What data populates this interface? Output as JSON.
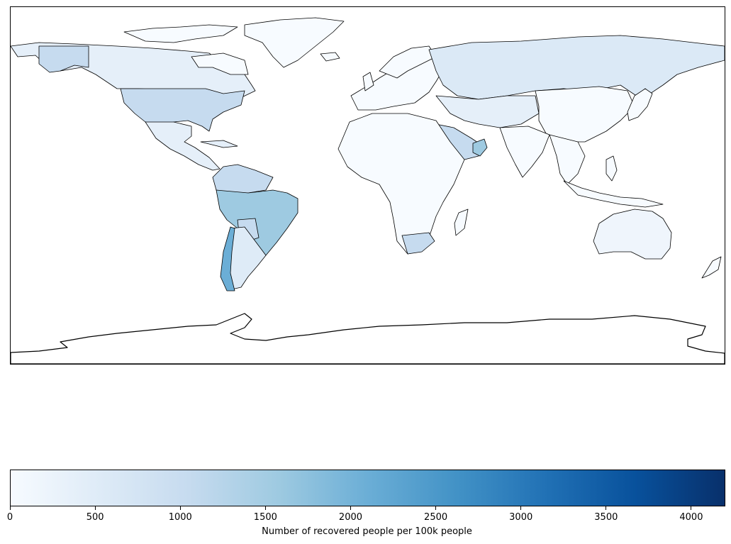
{
  "map": {
    "projection": "plate-carree",
    "coastlines": true,
    "colormap": "Blues",
    "fill_colors": {
      "lightest": "#f7fbff",
      "light": "#deebf7",
      "medium_light": "#c6dbef",
      "medium": "#9ecae1",
      "medium_dark": "#6baed6",
      "dark": "#4292c6"
    },
    "regions": [
      {
        "name": "Canada/Alaska",
        "color_class": "light"
      },
      {
        "name": "United States",
        "color_class": "medium_light"
      },
      {
        "name": "Brazil",
        "color_class": "medium"
      },
      {
        "name": "Chile",
        "color_class": "medium_dark"
      },
      {
        "name": "Oman",
        "color_class": "medium"
      },
      {
        "name": "Russia",
        "color_class": "light"
      },
      {
        "name": "South Africa",
        "color_class": "medium_light"
      },
      {
        "name": "Australia",
        "color_class": "lightest"
      },
      {
        "name": "Greenland",
        "color_class": "lightest"
      }
    ]
  },
  "colorbar": {
    "label": "Number of recovered people per 100k people",
    "min": 0,
    "max": 4200,
    "ticks": [
      "0",
      "500",
      "1000",
      "1500",
      "2000",
      "2500",
      "3000",
      "3500",
      "4000"
    ],
    "gradient": [
      "#f7fbff",
      "#deebf7",
      "#c6dbef",
      "#9ecae1",
      "#6baed6",
      "#4292c6",
      "#2171b5",
      "#08519c",
      "#08306b"
    ]
  }
}
